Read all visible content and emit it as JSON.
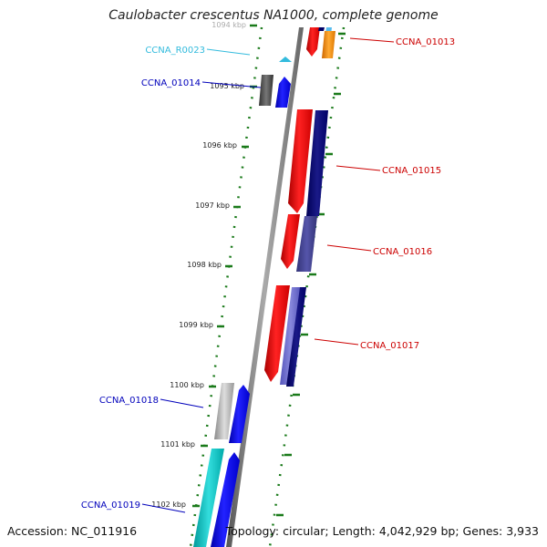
{
  "title": "Caulobacter crescentus NA1000, complete genome",
  "footer": {
    "accession": "Accession: NC_011916",
    "summary": "Topology: circular; Length: 4,042,929 bp; Genes: 3,933"
  },
  "ticks": [
    {
      "label": "1094 kbp"
    },
    {
      "label": "1095 kbp"
    },
    {
      "label": "1096 kbp"
    },
    {
      "label": "1097 kbp"
    },
    {
      "label": "1098 kbp"
    },
    {
      "label": "1099 kbp"
    },
    {
      "label": "1100 kbp"
    },
    {
      "label": "1101 kbp"
    },
    {
      "label": "1102 kbp"
    }
  ],
  "gene_labels": [
    {
      "name": "CCNA_R0023",
      "color": "#33bbdd"
    },
    {
      "name": "CCNA_01014",
      "color": "#0000bb"
    },
    {
      "name": "CCNA_01018",
      "color": "#0000bb"
    },
    {
      "name": "CCNA_01019",
      "color": "#0000bb"
    },
    {
      "name": "CCNA_01013",
      "color": "#cc0000"
    },
    {
      "name": "CCNA_01015",
      "color": "#cc0000"
    },
    {
      "name": "CCNA_01016",
      "color": "#cc0000"
    },
    {
      "name": "CCNA_01017",
      "color": "#cc0000"
    }
  ],
  "colors": {
    "backbone": "#888888",
    "tick": "#1a7a1a",
    "plus_strand_gene": "#ee0000",
    "minus_strand_gene": "#0000dd",
    "rna": "#33bbdd"
  }
}
